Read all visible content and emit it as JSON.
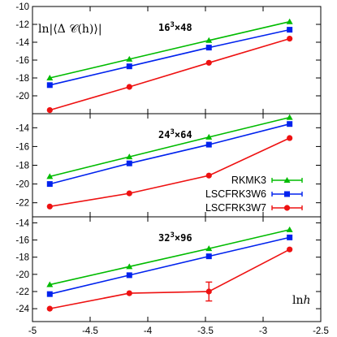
{
  "colors": {
    "RKMK3": "#00bb00",
    "LSCFRK3W6": "#0022ee",
    "LSCFRK3W7": "#ee1111",
    "axis": "#000000"
  },
  "chart_data": [
    {
      "type": "line",
      "title_base": "16",
      "title_exp": "3",
      "title_rest": "×48",
      "ylabel": "ln|⟨Δ 𝒞(h)⟩|",
      "xlabel": "",
      "xlim": [
        -5,
        -2.5
      ],
      "ylim": [
        -22,
        -10
      ],
      "yticks": [
        -20,
        -18,
        -16,
        -14,
        -12,
        -10
      ],
      "series": [
        {
          "name": "RKMK3",
          "marker": "triangle",
          "x": [
            -4.85,
            -4.16,
            -3.47,
            -2.77
          ],
          "y": [
            -18.0,
            -15.9,
            -13.8,
            -11.7
          ]
        },
        {
          "name": "LSCFRK3W6",
          "marker": "square",
          "x": [
            -4.85,
            -4.16,
            -3.47,
            -2.77
          ],
          "y": [
            -18.8,
            -16.7,
            -14.6,
            -12.6
          ]
        },
        {
          "name": "LSCFRK3W7",
          "marker": "circle",
          "x": [
            -4.85,
            -4.16,
            -3.47,
            -2.77
          ],
          "y": [
            -21.6,
            -19.0,
            -16.3,
            -13.6
          ]
        }
      ]
    },
    {
      "type": "line",
      "title_base": "24",
      "title_exp": "3",
      "title_rest": "×64",
      "ylabel": "",
      "xlabel": "",
      "xlim": [
        -5,
        -2.5
      ],
      "ylim": [
        -23.5,
        -12.5
      ],
      "yticks": [
        -22,
        -20,
        -18,
        -16,
        -14
      ],
      "legend_position": "right",
      "series": [
        {
          "name": "RKMK3",
          "marker": "triangle",
          "x": [
            -4.85,
            -4.16,
            -3.47,
            -2.77
          ],
          "y": [
            -19.2,
            -17.1,
            -15.0,
            -12.9
          ]
        },
        {
          "name": "LSCFRK3W6",
          "marker": "square",
          "x": [
            -4.85,
            -4.16,
            -3.47,
            -2.77
          ],
          "y": [
            -20.0,
            -17.8,
            -15.8,
            -13.6
          ]
        },
        {
          "name": "LSCFRK3W7",
          "marker": "circle",
          "x": [
            -4.85,
            -4.16,
            -3.47,
            -2.77
          ],
          "y": [
            -22.4,
            -21.0,
            -19.1,
            -15.1
          ]
        }
      ]
    },
    {
      "type": "line",
      "title_base": "32",
      "title_exp": "3",
      "title_rest": "×96",
      "ylabel": "",
      "xlabel": "lnh",
      "xlim": [
        -5,
        -2.5
      ],
      "ylim": [
        -25.5,
        -13.3
      ],
      "yticks": [
        -24,
        -22,
        -20,
        -18,
        -16,
        -14
      ],
      "xticks": [
        -5,
        -4.5,
        -4,
        -3.5,
        -3,
        -2.5
      ],
      "series": [
        {
          "name": "RKMK3",
          "marker": "triangle",
          "x": [
            -4.85,
            -4.16,
            -3.47,
            -2.77
          ],
          "y": [
            -21.2,
            -19.1,
            -17.0,
            -14.8
          ]
        },
        {
          "name": "LSCFRK3W6",
          "marker": "square",
          "x": [
            -4.85,
            -4.16,
            -3.47,
            -2.77
          ],
          "y": [
            -22.3,
            -20.1,
            -17.9,
            -15.7
          ]
        },
        {
          "name": "LSCFRK3W7",
          "marker": "circle",
          "x": [
            -4.85,
            -4.16,
            -3.47,
            -2.77
          ],
          "y": [
            -24.0,
            -22.2,
            -22.0,
            -17.1
          ],
          "yerr": [
            0,
            0,
            1.1,
            0
          ]
        }
      ]
    }
  ]
}
